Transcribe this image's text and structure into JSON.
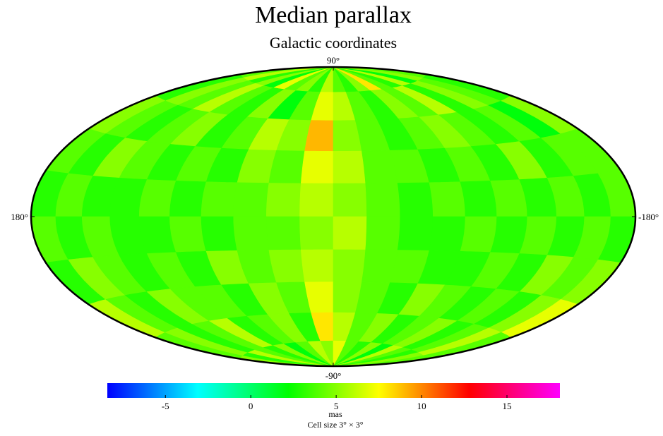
{
  "chart_data": {
    "type": "skymap",
    "title": "Median parallax",
    "subtitle": "Galactic coordinates",
    "lat_labels": {
      "top": "90°",
      "bottom": "-90°"
    },
    "lon_labels": {
      "left": "180°",
      "right": "-180°"
    },
    "colorbar_label": "mas",
    "note": "Cell size 3° × 3°",
    "colormap": [
      "#0000ff",
      "#00ffff",
      "#00ff00",
      "#ffff00",
      "#ff0000",
      "#ff00ff"
    ],
    "clim": [
      -8.4,
      18.1
    ],
    "cticks": [
      -5,
      0,
      5,
      10,
      15
    ],
    "values": [
      [
        4,
        6,
        3,
        5,
        2,
        7,
        4,
        5,
        3,
        6,
        4,
        3,
        5,
        8,
        4,
        3,
        6,
        2,
        5,
        4
      ],
      [
        3,
        5,
        4,
        6,
        4,
        3,
        5,
        2,
        4,
        7,
        6,
        4,
        3,
        5,
        4,
        6,
        3,
        5,
        4,
        3
      ],
      [
        5,
        4,
        3,
        4,
        5,
        3,
        4,
        6,
        5,
        9,
        5,
        4,
        3,
        4,
        5,
        4,
        3,
        4,
        2,
        5
      ],
      [
        4,
        3,
        5,
        4,
        3,
        4,
        3,
        5,
        4,
        7,
        6,
        4,
        4,
        3,
        4,
        3,
        5,
        3,
        4,
        4
      ],
      [
        3,
        4,
        3,
        3,
        4,
        3,
        4,
        4,
        5,
        6,
        5,
        4,
        3,
        4,
        3,
        4,
        3,
        4,
        3,
        4
      ],
      [
        4,
        3,
        4,
        3,
        3,
        4,
        3,
        4,
        4,
        5,
        6,
        4,
        3,
        3,
        4,
        3,
        4,
        3,
        4,
        3
      ],
      [
        3,
        5,
        4,
        3,
        4,
        3,
        5,
        4,
        5,
        6,
        5,
        4,
        4,
        3,
        3,
        4,
        3,
        5,
        4,
        5
      ],
      [
        6,
        4,
        3,
        5,
        4,
        4,
        3,
        5,
        4,
        7,
        5,
        4,
        3,
        5,
        4,
        3,
        4,
        3,
        5,
        7
      ],
      [
        4,
        5,
        3,
        4,
        6,
        3,
        4,
        5,
        3,
        8,
        6,
        4,
        5,
        3,
        4,
        5,
        3,
        4,
        6,
        4
      ],
      [
        5,
        3,
        6,
        4,
        3,
        5,
        2,
        4,
        6,
        5,
        7,
        4,
        3,
        5,
        2,
        6,
        4,
        3,
        5,
        4
      ]
    ]
  }
}
